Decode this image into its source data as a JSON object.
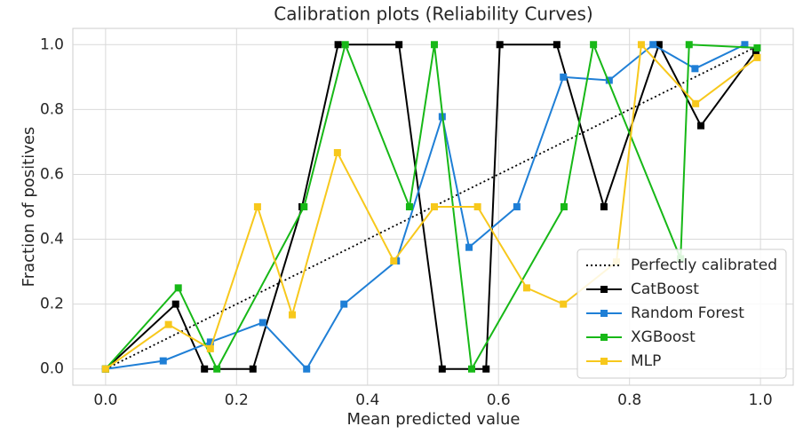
{
  "chart_data": {
    "type": "line",
    "title": "Calibration plots (Reliability Curves)",
    "xlabel": "Mean predicted value",
    "ylabel": "Fraction of positives",
    "xlim": [
      -0.05,
      1.05
    ],
    "ylim": [
      -0.05,
      1.05
    ],
    "xticks": [
      {
        "value": 0,
        "label": "0.0"
      },
      {
        "value": 0.2,
        "label": "0.2"
      },
      {
        "value": 0.4,
        "label": "0.4"
      },
      {
        "value": 0.6,
        "label": "0.6"
      },
      {
        "value": 0.8,
        "label": "0.8"
      },
      {
        "value": 1,
        "label": "1.0"
      }
    ],
    "yticks": [
      {
        "value": 0,
        "label": "0.0"
      },
      {
        "value": 0.2,
        "label": "0.2"
      },
      {
        "value": 0.4,
        "label": "0.4"
      },
      {
        "value": 0.6,
        "label": "0.6"
      },
      {
        "value": 0.8,
        "label": "0.8"
      },
      {
        "value": 1,
        "label": "1.0"
      }
    ],
    "grid": true,
    "legend": "lower right",
    "reference": {
      "name": "Perfectly calibrated",
      "x": [
        0,
        1
      ],
      "values": [
        0,
        1
      ],
      "color": "#000000"
    },
    "series": [
      {
        "name": "CatBoost",
        "color": "#000000",
        "x": [
          0,
          0.107,
          0.151,
          0.225,
          0.3,
          0.355,
          0.448,
          0.514,
          0.581,
          0.602,
          0.689,
          0.761,
          0.845,
          0.909,
          0.993
        ],
        "values": [
          0,
          0.2,
          0,
          0,
          0.5,
          1,
          1,
          0,
          0,
          1,
          1,
          0.5,
          1,
          0.75,
          0.98
        ]
      },
      {
        "name": "Random Forest",
        "color": "#1f7fd6",
        "x": [
          0,
          0.088,
          0.16,
          0.24,
          0.307,
          0.364,
          0.444,
          0.514,
          0.555,
          0.628,
          0.699,
          0.769,
          0.836,
          0.9,
          0.976
        ],
        "values": [
          0,
          0.025,
          0.083,
          0.143,
          0,
          0.2,
          0.333,
          0.778,
          0.375,
          0.5,
          0.9,
          0.89,
          1,
          0.926,
          1
        ]
      },
      {
        "name": "XGBoost",
        "color": "#17b817",
        "x": [
          0,
          0.111,
          0.17,
          0.303,
          0.366,
          0.464,
          0.502,
          0.559,
          0.7,
          0.745,
          0.878,
          0.891,
          0.995
        ],
        "values": [
          0,
          0.25,
          0,
          0.5,
          1,
          0.5,
          1,
          0,
          0.5,
          1,
          0.34,
          1,
          0.99
        ]
      },
      {
        "name": "MLP",
        "color": "#f7c81c",
        "x": [
          0,
          0.096,
          0.16,
          0.232,
          0.285,
          0.354,
          0.44,
          0.502,
          0.568,
          0.643,
          0.699,
          0.78,
          0.818,
          0.901,
          0.995
        ],
        "values": [
          0,
          0.137,
          0.0625,
          0.5,
          0.167,
          0.667,
          0.333,
          0.5,
          0.5,
          0.25,
          0.2,
          0.33,
          1,
          0.818,
          0.96
        ]
      }
    ]
  }
}
